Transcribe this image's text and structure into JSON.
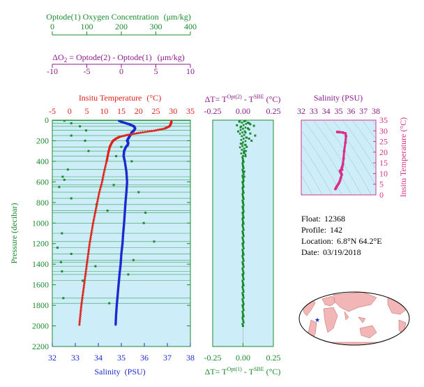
{
  "colors": {
    "panel_bg": "#cdeef8",
    "green": "#1a8a2e",
    "purple": "#8a1a8a",
    "red": "#e0201a",
    "blue": "#1a2ad0",
    "magenta": "#d8308a",
    "land": "#f2b6b6",
    "ocean": "#ffffff"
  },
  "labels": {
    "oxygen_title": "Optode(1) Oxygen Concentration",
    "oxygen_unit": "(μm/kg)",
    "delta_o2_prefix": "ΔO",
    "delta_o2_sub": "2",
    "delta_o2_rest": " = Optode(2) - Optode(1)",
    "delta_o2_unit": "(μm/kg)",
    "temp_title": "Insitu Temperature",
    "temp_unit": "(°C)",
    "salinity_xlabel": "Salinity",
    "salinity_unit": "(PSU)",
    "pressure_label": "Pressure (decibar)",
    "dt_top_a": "ΔT= T",
    "dt_top_sup1": "Opt(2)",
    "dt_top_b": " - T",
    "dt_top_sup2": "SBE",
    "dt_top_c": " (°C)",
    "dt_bottom_a": "ΔT= T",
    "dt_bottom_sup1": "Opt(1)",
    "dt_bottom_b": " - T",
    "dt_bottom_sup2": "SBE",
    "dt_bottom_c": " (°C)",
    "ts_title": "Salinity (PSU)",
    "ts_ylabel": "Insitu Temperature (°C)"
  },
  "info": {
    "float_label": "Float:",
    "float_value": "12368",
    "profile_label": "Profile:",
    "profile_value": "142",
    "location_label": "Location:",
    "location_value": "6.8°N  64.2°E",
    "date_label": "Date:",
    "date_value": "03/19/2018"
  },
  "chart_data": [
    {
      "type": "line",
      "panel": "profile",
      "ylabel": "Pressure (decibar)",
      "ylim": [
        2200,
        0
      ],
      "yticks": [
        "0",
        "200",
        "400",
        "600",
        "800",
        "1000",
        "1200",
        "1400",
        "1600",
        "1800",
        "2000",
        "2200"
      ],
      "axes": {
        "oxygen": {
          "label": "Optode(1) Oxygen Concentration (μm/kg)",
          "range": [
            0,
            400
          ],
          "ticks": [
            "0",
            "100",
            "200",
            "300",
            "400"
          ]
        },
        "delta_o2": {
          "label": "ΔO2 = Optode(2) - Optode(1) (μm/kg)",
          "range": [
            -10,
            10
          ],
          "ticks": [
            "-10",
            "-5",
            "0",
            "5",
            "10"
          ]
        },
        "temperature": {
          "label": "Insitu Temperature (°C)",
          "range": [
            -5,
            35
          ],
          "ticks": [
            "-5",
            "0",
            "5",
            "10",
            "15",
            "20",
            "25",
            "30",
            "35"
          ]
        },
        "salinity": {
          "label": "Salinity (PSU)",
          "range": [
            32,
            38
          ],
          "ticks": [
            "32",
            "33",
            "34",
            "35",
            "36",
            "37",
            "38"
          ]
        }
      },
      "series": [
        {
          "name": "Insitu Temperature",
          "axis": "temperature",
          "pressure": [
            5,
            20,
            40,
            60,
            80,
            100,
            120,
            140,
            160,
            180,
            200,
            220,
            240,
            260,
            300,
            350,
            400,
            500,
            600,
            700,
            800,
            900,
            1000,
            1100,
            1200,
            1300,
            1400,
            1500,
            1600,
            1700,
            1800,
            1900,
            2000
          ],
          "values": [
            29.5,
            29.4,
            29.2,
            28.8,
            27.5,
            24.5,
            20.5,
            17.0,
            14.5,
            13.3,
            12.5,
            12.1,
            11.8,
            11.6,
            11.3,
            11.0,
            10.7,
            10.0,
            9.4,
            8.6,
            8.0,
            7.4,
            6.8,
            6.3,
            5.8,
            5.4,
            5.0,
            4.6,
            4.2,
            3.8,
            3.4,
            3.1,
            2.8
          ]
        },
        {
          "name": "Salinity",
          "axis": "salinity",
          "pressure": [
            5,
            20,
            40,
            60,
            80,
            100,
            120,
            140,
            160,
            180,
            200,
            220,
            240,
            260,
            300,
            350,
            400,
            500,
            600,
            700,
            800,
            900,
            1000,
            1100,
            1200,
            1300,
            1400,
            1500,
            1600,
            1700,
            1800,
            1900,
            2000
          ],
          "values": [
            34.9,
            35.05,
            35.35,
            35.55,
            35.6,
            35.55,
            35.45,
            35.4,
            35.35,
            35.3,
            35.25,
            35.3,
            35.28,
            35.2,
            35.12,
            35.1,
            35.15,
            35.22,
            35.25,
            35.22,
            35.18,
            35.15,
            35.12,
            35.08,
            35.05,
            35.0,
            34.97,
            34.92,
            34.88,
            34.84,
            34.8,
            34.77,
            34.75
          ]
        },
        {
          "name": "Oxygen",
          "axis": "oxygen",
          "pressure": [
            5,
            30,
            60,
            100,
            150,
            200,
            260,
            300,
            350,
            400,
            480,
            550,
            580,
            630,
            650,
            700,
            760,
            820,
            880,
            900,
            1000,
            1100,
            1180,
            1240,
            1300,
            1360,
            1380,
            1420,
            1470,
            1500,
            1560,
            1730,
            1780
          ],
          "values": [
            35,
            55,
            80,
            98,
            55,
            95,
            200,
            105,
            185,
            230,
            45,
            30,
            35,
            178,
            20,
            250,
            55,
            128,
            160,
            270,
            265,
            28,
            295,
            15,
            55,
            235,
            25,
            125,
            28,
            220,
            88,
            32,
            165
          ]
        }
      ]
    },
    {
      "type": "scatter",
      "panel": "delta_t",
      "title": "ΔT= T Opt(2) - T SBE (°C)",
      "xlabel": "ΔT= T Opt(1) - T SBE (°C)",
      "xlim": [
        -0.25,
        0.25
      ],
      "xticks": [
        "-0.25",
        "0.00",
        "0.25"
      ],
      "ylim": [
        2200,
        0
      ],
      "series": [
        {
          "name": "Opt(2)",
          "pressure": [
            5,
            15,
            25,
            40,
            55,
            70,
            90,
            110,
            130,
            150,
            170,
            200,
            230,
            260,
            300,
            350,
            400,
            500,
            600,
            700,
            800,
            900,
            1000,
            1200,
            1400,
            1600,
            1800,
            2000
          ],
          "values": [
            0.02,
            -0.03,
            0.04,
            0.06,
            0.09,
            -0.02,
            0.05,
            -0.04,
            0.06,
            0.1,
            0.03,
            0.07,
            -0.01,
            0.03,
            0.01,
            0.02,
            0.0,
            0.01,
            0.0,
            0.0,
            0.0,
            0.0,
            0.0,
            0.0,
            0.0,
            0.0,
            0.0,
            0.0
          ]
        },
        {
          "name": "Opt(1)",
          "pressure": [
            10,
            30,
            50,
            80,
            120,
            180,
            240,
            320,
            450,
            550,
            650,
            750,
            850,
            950,
            1100,
            1300,
            1500,
            1700,
            1900
          ],
          "values": [
            -0.03,
            0.05,
            -0.05,
            0.04,
            0.02,
            0.05,
            0.02,
            0.01,
            0.0,
            0.01,
            0.0,
            0.0,
            0.0,
            0.0,
            0.0,
            0.0,
            0.0,
            0.0,
            0.0
          ]
        }
      ]
    },
    {
      "type": "line",
      "panel": "ts",
      "title": "Salinity (PSU)",
      "ylabel": "Insitu Temperature (°C)",
      "xlim": [
        32,
        38
      ],
      "ylim": [
        0,
        35
      ],
      "xticks": [
        "32",
        "33",
        "34",
        "35",
        "36",
        "37",
        "38"
      ],
      "yticks": [
        "0",
        "5",
        "10",
        "15",
        "20",
        "25",
        "30",
        "35"
      ],
      "series": [
        {
          "name": "T-S",
          "salinity": [
            34.9,
            35.05,
            35.35,
            35.55,
            35.6,
            35.55,
            35.45,
            35.4,
            35.35,
            35.3,
            35.25,
            35.28,
            35.2,
            35.12,
            35.15,
            35.22,
            35.25,
            35.18,
            35.12,
            35.05,
            34.97,
            34.88,
            34.8,
            34.75
          ],
          "temperature": [
            29.5,
            29.4,
            29.2,
            28.8,
            27.5,
            24.5,
            20.5,
            17.0,
            14.5,
            13.3,
            12.5,
            11.8,
            11.6,
            11.3,
            10.7,
            10.0,
            9.4,
            8.0,
            6.8,
            5.8,
            5.0,
            4.2,
            3.4,
            2.8
          ]
        }
      ]
    }
  ]
}
